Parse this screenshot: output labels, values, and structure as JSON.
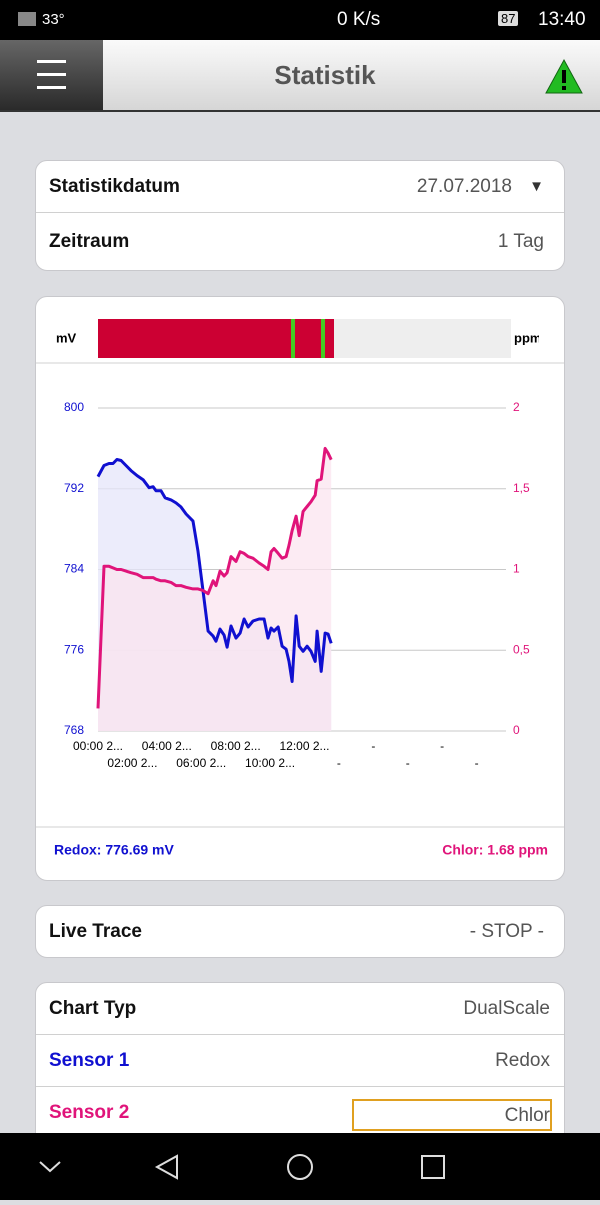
{
  "status_bar": {
    "temperature": "33°",
    "speed": "0 K/s",
    "battery": "87",
    "time": "13:40"
  },
  "header": {
    "title": "Statistik"
  },
  "settings": {
    "date_label": "Statistikdatum",
    "date_value": "27.07.2018",
    "range_label": "Zeitraum",
    "range_value": "1 Tag"
  },
  "chart_data": {
    "type": "line",
    "y_label": "mV",
    "y2_label": "ppm",
    "x": [
      0,
      0.35,
      0.64,
      0.87,
      1.1,
      1.34,
      1.63,
      1.92,
      2.27,
      2.62,
      2.97,
      3.2,
      3.37,
      3.66,
      3.9,
      4.24,
      4.53,
      4.82,
      5.12,
      5.52,
      5.81,
      6.1,
      6.4,
      6.69,
      6.86,
      7.09,
      7.33,
      7.5,
      7.73,
      8.02,
      8.26,
      8.49,
      8.72,
      9.01,
      9.36,
      9.65,
      9.88,
      10.06,
      10.23,
      10.47,
      10.7,
      10.93,
      11.1,
      11.28,
      11.51,
      11.69,
      11.92,
      12.15,
      12.38,
      12.62,
      12.73,
      12.97,
      13.2,
      13.37,
      13.55
    ],
    "xlim": [
      0,
      24
    ],
    "xticks": [
      {
        "value": 0,
        "label": "00:00 2..."
      },
      {
        "value": 2,
        "label": "02:00 2..."
      },
      {
        "value": 4,
        "label": "04:00 2..."
      },
      {
        "value": 6,
        "label": "06:00 2..."
      },
      {
        "value": 8,
        "label": "08:00 2..."
      },
      {
        "value": 10,
        "label": "10:00 2..."
      },
      {
        "value": 12,
        "label": "12:00 2..."
      },
      {
        "value": 14,
        "label": "-"
      },
      {
        "value": 16,
        "label": "-"
      },
      {
        "value": 18,
        "label": "-"
      },
      {
        "value": 20,
        "label": "-"
      },
      {
        "value": 22,
        "label": "-"
      }
    ],
    "ylim": [
      768,
      800
    ],
    "yticks": [
      768,
      776,
      784,
      792,
      800
    ],
    "y2lim": [
      0,
      2
    ],
    "y2ticks": [
      0,
      {
        "value": 0.5,
        "label": "0,5"
      },
      1,
      {
        "value": 1.5,
        "label": "1,5"
      },
      2
    ],
    "grid": true,
    "series": [
      {
        "color": "#1010d0",
        "fill": "#e6e6fa",
        "values": [
          793.2,
          794.3,
          794.5,
          794.5,
          794.9,
          794.8,
          794.3,
          793.8,
          793.3,
          792.9,
          792.1,
          792.2,
          791.8,
          791.8,
          791.1,
          790.9,
          790.6,
          790.2,
          789.5,
          788.8,
          785.8,
          781.9,
          777.9,
          777.4,
          776.9,
          778.1,
          777.5,
          776.3,
          778.4,
          777.2,
          777.7,
          779.1,
          778.3,
          778.9,
          779.1,
          779.1,
          777.2,
          778.2,
          777.9,
          778.3,
          776.4,
          776.1,
          774.9,
          772.9,
          779.4,
          776.4,
          775.9,
          776.4,
          775.9,
          774.9,
          777.9,
          773.9,
          777.7,
          777.6,
          776.69
        ]
      },
      {
        "color": "#e0147a",
        "fill": "#fbe4ef",
        "axis": "y2",
        "values": [
          0.14,
          1.02,
          1.02,
          1.01,
          1.0,
          1.0,
          0.99,
          0.98,
          0.97,
          0.95,
          0.95,
          0.95,
          0.94,
          0.93,
          0.93,
          0.92,
          0.9,
          0.9,
          0.89,
          0.88,
          0.88,
          0.87,
          0.85,
          0.93,
          0.9,
          0.99,
          0.96,
          0.98,
          1.08,
          1.05,
          1.11,
          1.1,
          1.08,
          1.07,
          1.04,
          1.02,
          1.0,
          1.11,
          1.13,
          1.1,
          1.07,
          1.08,
          1.15,
          1.24,
          1.33,
          1.21,
          1.36,
          1.39,
          1.42,
          1.46,
          1.55,
          1.56,
          1.75,
          1.72,
          1.68
        ]
      }
    ]
  },
  "readout": {
    "left": "Redox: 776.69 mV",
    "right": "Chlor: 1.68 ppm"
  },
  "live_trace": {
    "label": "Live Trace",
    "value": "- STOP -"
  },
  "options": {
    "chart_type_label": "Chart Typ",
    "chart_type_value": "DualScale",
    "sensor1_label": "Sensor 1",
    "sensor1_value": "Redox",
    "sensor2_label": "Sensor 2",
    "sensor2_value": "Chlor"
  }
}
